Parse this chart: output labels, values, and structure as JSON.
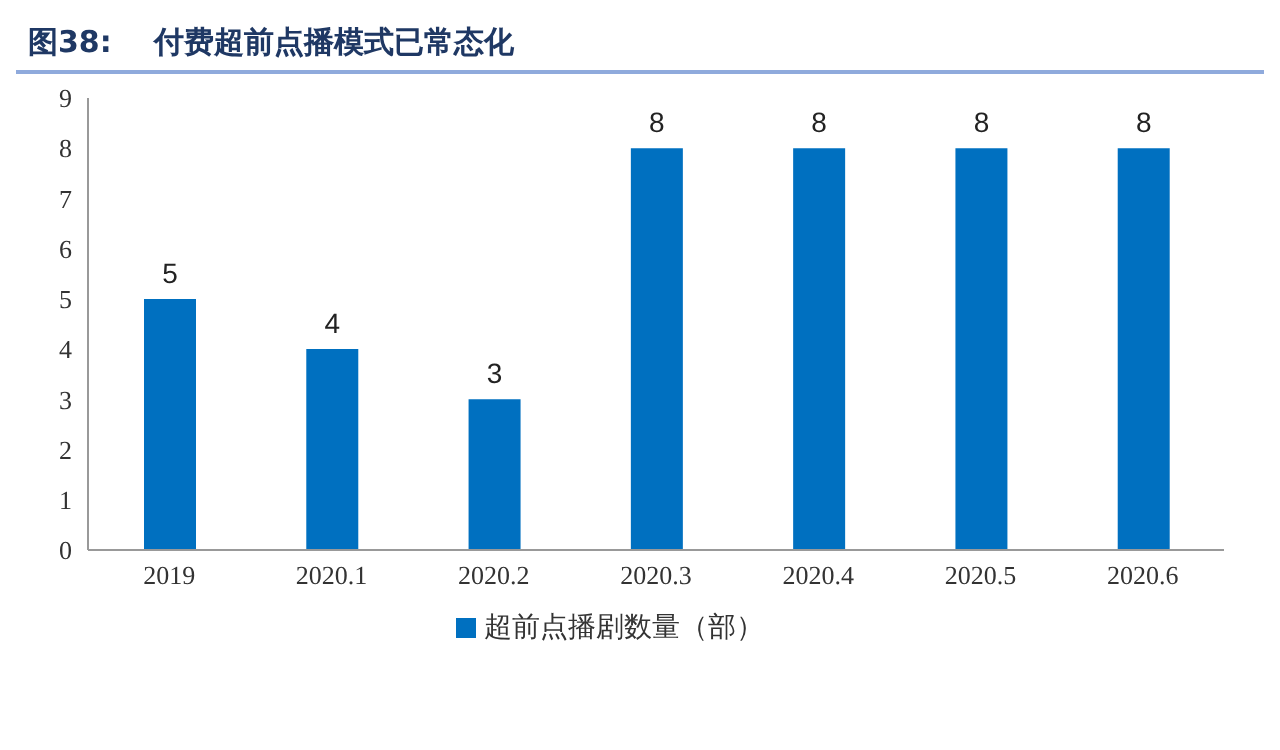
{
  "chart_data": {
    "type": "bar",
    "title": "图38:    付费超前点播模式已常态化",
    "categories": [
      "2019",
      "2020.1",
      "2020.2",
      "2020.3",
      "2020.4",
      "2020.5",
      "2020.6"
    ],
    "series": [
      {
        "name": "超前点播剧数量（部）",
        "color": "#0070c0",
        "values": [
          5,
          4,
          3,
          8,
          8,
          8,
          8
        ]
      }
    ],
    "ylim": [
      0,
      9
    ],
    "yticks": [
      0,
      1,
      2,
      3,
      4,
      5,
      6,
      7,
      8,
      9
    ],
    "data_labels": true,
    "legend": "bottom"
  }
}
